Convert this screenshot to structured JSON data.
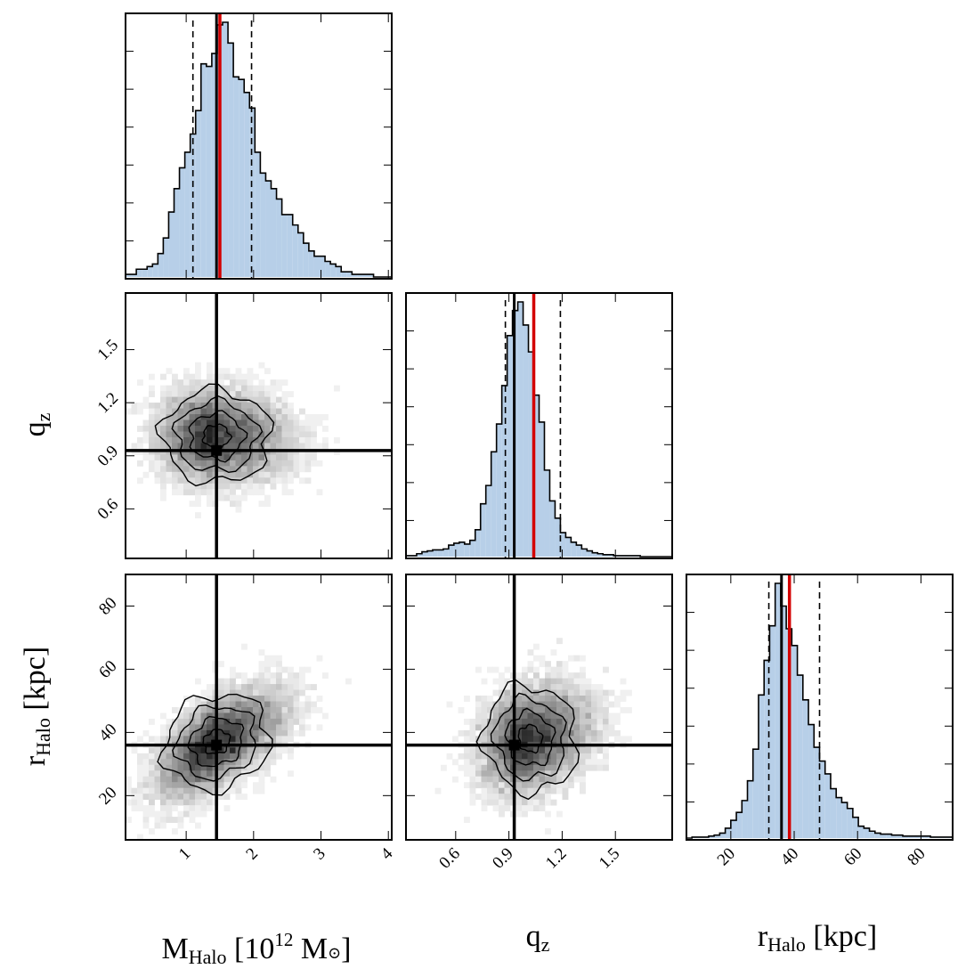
{
  "chart_data": {
    "type": "corner",
    "parameters": [
      {
        "key": "M",
        "label_main": "M",
        "label_sub": "Halo",
        "label_rest": " [10",
        "label_sup": "12",
        "label_unit": " M",
        "label_tail": "]",
        "range": [
          0.1,
          4.05
        ],
        "ticks": [
          1,
          2,
          3,
          4
        ],
        "tick_labels": [
          "1",
          "2",
          "3",
          "4"
        ],
        "truth": 1.45,
        "median": 1.5,
        "q16": 1.1,
        "q84": 1.97
      },
      {
        "key": "q",
        "label_main": "q",
        "label_sub": "z",
        "range": [
          0.32,
          1.82
        ],
        "ticks": [
          0.6,
          0.9,
          1.2,
          1.5
        ],
        "tick_labels": [
          "0.6",
          "0.9",
          "1.2",
          "1.5"
        ],
        "truth": 0.93,
        "median": 1.04,
        "q16": 0.88,
        "q84": 1.19
      },
      {
        "key": "r",
        "label_main": "r",
        "label_sub": "Halo",
        "label_rest": " [kpc]",
        "range": [
          6,
          90
        ],
        "ticks": [
          20,
          40,
          60,
          80
        ],
        "tick_labels": [
          "20",
          "40",
          "60",
          "80"
        ],
        "truth": 36,
        "median": 38.5,
        "q16": 32,
        "q84": 48
      }
    ],
    "histograms": {
      "M": {
        "bin_start": 0.1,
        "bin_width": 0.08,
        "counts": [
          1,
          1,
          3,
          3,
          4,
          5,
          9,
          15,
          25,
          34,
          42,
          48,
          55,
          64,
          82,
          81,
          86,
          97,
          98,
          90,
          77,
          76,
          71,
          65,
          48,
          40,
          37,
          34,
          30,
          24,
          24,
          20,
          17,
          13,
          10,
          8,
          8,
          6,
          5,
          4,
          2,
          2,
          1,
          1,
          1,
          1,
          0,
          0,
          0,
          0
        ]
      },
      "q": {
        "bin_start": 0.32,
        "bin_width": 0.03,
        "counts": [
          1,
          1,
          3,
          5,
          6,
          7,
          7,
          8,
          12,
          14,
          15,
          13,
          17,
          28,
          55,
          74,
          109,
          138,
          178,
          230,
          256,
          265,
          241,
          213,
          168,
          140,
          90,
          58,
          40,
          25,
          20,
          15,
          12,
          8,
          6,
          4,
          3,
          2,
          2,
          1,
          1,
          1,
          1,
          1,
          0,
          0,
          0,
          0,
          0,
          0
        ]
      },
      "r": {
        "bin_start": 6,
        "bin_width": 1.75,
        "counts": [
          0,
          1,
          1,
          1,
          2,
          3,
          5,
          10,
          18,
          26,
          38,
          58,
          90,
          145,
          180,
          215,
          258,
          235,
          212,
          195,
          165,
          140,
          115,
          92,
          78,
          65,
          50,
          41,
          36,
          30,
          21,
          12,
          10,
          7,
          5,
          4,
          4,
          3,
          3,
          2,
          2,
          2,
          2,
          2,
          1,
          1,
          1,
          1
        ]
      }
    },
    "joint": [
      {
        "x": "M",
        "y": "q",
        "center": [
          1.45,
          1.01
        ],
        "sigma": [
          0.4,
          0.12
        ],
        "rho": -0.05
      },
      {
        "x": "M",
        "y": "r",
        "center": [
          1.45,
          37
        ],
        "sigma": [
          0.4,
          8
        ],
        "rho": 0.6
      },
      {
        "x": "q",
        "y": "r",
        "center": [
          1.02,
          38
        ],
        "sigma": [
          0.13,
          8
        ],
        "rho": 0.25
      }
    ],
    "lines": {
      "truth_color": "#000000",
      "median_color": "#d40000",
      "quantile_style": "dashed"
    },
    "colors": {
      "hist_fill": "#b7cfe8",
      "hist_edge": "#000000",
      "density_dark": "#1a1a1a"
    }
  }
}
